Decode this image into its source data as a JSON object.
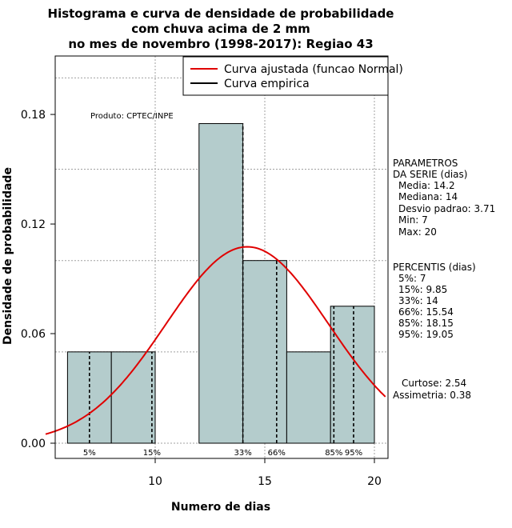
{
  "chart_data": {
    "type": "bar",
    "title_lines": [
      "Histograma e curva de densidade de probabilidade",
      "com chuva acima de 2 mm",
      "no mes de novembro (1998-2017): Regiao 43"
    ],
    "xlabel": "Numero de dias",
    "ylabel": "Densidade de probabilidade",
    "xlim": [
      5,
      20.5
    ],
    "ylim": [
      0,
      0.21
    ],
    "x_ticks": [
      10,
      15,
      20
    ],
    "y_ticks": [
      0.0,
      0.06,
      0.12,
      0.18
    ],
    "y_tick_labels": [
      "0.00",
      "0.06",
      "0.12",
      "0.18"
    ],
    "bins": [
      {
        "x0": 6,
        "x1": 8,
        "density": 0.05
      },
      {
        "x0": 8,
        "x1": 10,
        "density": 0.05
      },
      {
        "x0": 10,
        "x1": 12,
        "density": 0.0
      },
      {
        "x0": 12,
        "x1": 14,
        "density": 0.175
      },
      {
        "x0": 14,
        "x1": 16,
        "density": 0.1
      },
      {
        "x0": 16,
        "x1": 18,
        "density": 0.05
      },
      {
        "x0": 18,
        "x1": 20,
        "density": 0.075
      }
    ],
    "normal_fit": {
      "mean": 14.2,
      "sd": 3.71
    },
    "percentile_lines": [
      {
        "label": "5%",
        "x": 7
      },
      {
        "label": "15%",
        "x": 9.85
      },
      {
        "label": "33%",
        "x": 14
      },
      {
        "label": "66%",
        "x": 15.54
      },
      {
        "label": "85%",
        "x": 18.15
      },
      {
        "label": "95%",
        "x": 19.05
      }
    ],
    "legend": [
      {
        "label": "Curva ajustada (funcao Normal)",
        "color": "#e00000"
      },
      {
        "label": "Curva empirica",
        "color": "#000000"
      }
    ],
    "product_label": "Produto: CPTEC/INPE",
    "parametros": [
      "PARAMETROS",
      "DA SERIE (dias)",
      "Media: 14.2",
      "Mediana: 14",
      "Desvio padrao: 3.71",
      "Min: 7",
      "Max: 20"
    ],
    "percentis": [
      "PERCENTIS (dias)",
      "5%: 7",
      "15%: 9.85",
      "33%: 14",
      "66%: 15.54",
      "85%: 18.15",
      "95%: 19.05"
    ],
    "stats": [
      "Curtose: 2.54",
      "Assimetria: 0.38"
    ],
    "colors": {
      "bar_fill": "#b4cccc",
      "curve": "#e00000",
      "grid": "#a0a0a0"
    }
  }
}
